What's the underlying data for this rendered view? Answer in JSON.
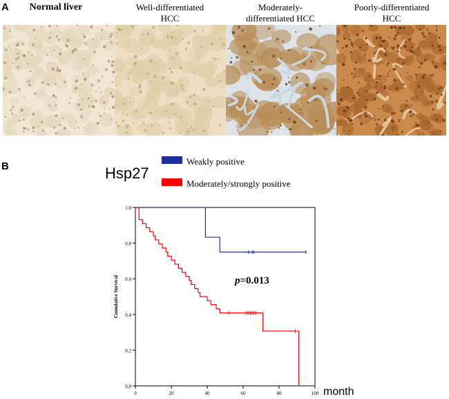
{
  "panel_a_label": "A",
  "panel_b_label": "B",
  "micrographs": [
    {
      "line1": "Normal liver",
      "line2": "",
      "stain": "weak"
    },
    {
      "line1": "Well-differentiated",
      "line2": "HCC",
      "stain": "weak-moderate"
    },
    {
      "line1": "Moderately-",
      "line2": "differentiated HCC",
      "stain": "moderate"
    },
    {
      "line1": "Poorly-differentiated",
      "line2": "HCC",
      "stain": "strong"
    }
  ],
  "km_title": "Hsp27",
  "legend": [
    {
      "label": "Weakly positive",
      "color": "#1f2f9a"
    },
    {
      "label": "Moderately/strongly positive",
      "color": "#ff0000"
    }
  ],
  "p_value_prefix": "p",
  "p_value_rest": "=0.013",
  "x_unit": "month",
  "chart_data": {
    "type": "line",
    "title": "Hsp27",
    "xlabel": "month",
    "ylabel": "Cumulative Survival",
    "xlim": [
      0,
      100
    ],
    "ylim": [
      0.0,
      1.0
    ],
    "xticks": [
      0,
      20,
      40,
      60,
      80,
      100
    ],
    "yticks": [
      0.0,
      0.2,
      0.4,
      0.6,
      0.8,
      1.0
    ],
    "annotation": "p=0.013",
    "series": [
      {
        "name": "Weakly positive",
        "color": "#1f2f9a",
        "steps": [
          [
            0,
            1.0
          ],
          [
            39,
            0.833
          ],
          [
            47,
            0.75
          ],
          [
            95,
            0.75
          ]
        ],
        "censored": [
          [
            63,
            0.75
          ],
          [
            65,
            0.75
          ],
          [
            66,
            0.75
          ],
          [
            95,
            0.75
          ]
        ]
      },
      {
        "name": "Moderately/strongly positive",
        "color": "#ff0000",
        "steps": [
          [
            0,
            1.0
          ],
          [
            2,
            0.932
          ],
          [
            4,
            0.909
          ],
          [
            6,
            0.886
          ],
          [
            8,
            0.864
          ],
          [
            10,
            0.841
          ],
          [
            11,
            0.818
          ],
          [
            13,
            0.795
          ],
          [
            15,
            0.773
          ],
          [
            17,
            0.75
          ],
          [
            18,
            0.727
          ],
          [
            20,
            0.705
          ],
          [
            22,
            0.682
          ],
          [
            24,
            0.659
          ],
          [
            26,
            0.636
          ],
          [
            28,
            0.614
          ],
          [
            30,
            0.591
          ],
          [
            31,
            0.568
          ],
          [
            33,
            0.545
          ],
          [
            35,
            0.523
          ],
          [
            36,
            0.5
          ],
          [
            40,
            0.477
          ],
          [
            42,
            0.455
          ],
          [
            45,
            0.432
          ],
          [
            47,
            0.409
          ],
          [
            71,
            0.307
          ],
          [
            91,
            0.0
          ]
        ],
        "censored": [
          [
            52,
            0.409
          ],
          [
            62,
            0.409
          ],
          [
            63,
            0.409
          ],
          [
            64,
            0.409
          ],
          [
            65,
            0.409
          ],
          [
            66,
            0.409
          ],
          [
            67,
            0.409
          ],
          [
            89,
            0.307
          ]
        ]
      }
    ]
  }
}
